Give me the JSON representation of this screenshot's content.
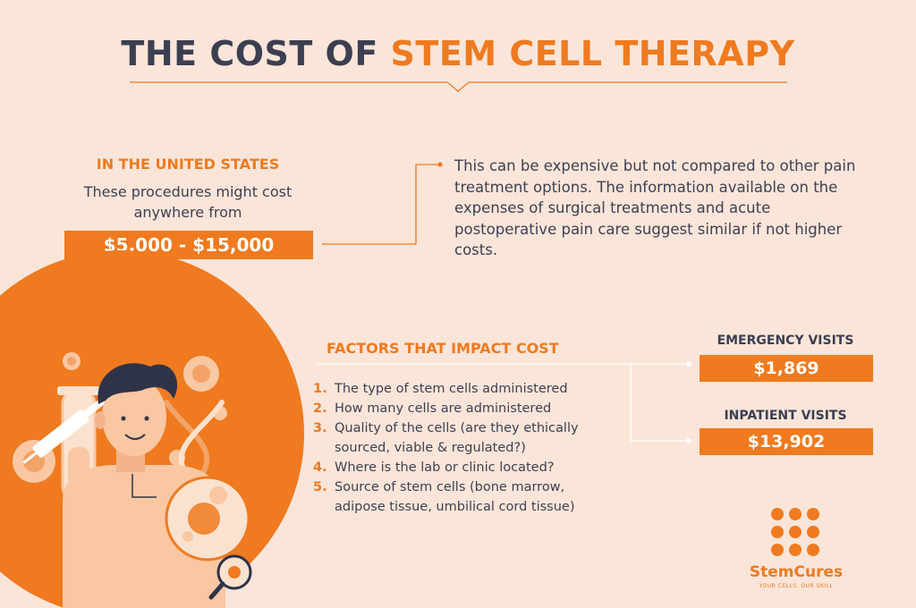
{
  "title": {
    "part1": "THE COST OF ",
    "part2": "STEM CELL THERAPY"
  },
  "united_states": {
    "heading": "IN THE UNITED STATES",
    "description_line1": "These procedures might cost",
    "description_line2": "anywhere from",
    "price_range": "$5,000 - $15,000"
  },
  "explanation": "This can be expensive but not compared to other pain treatment options. The information available on the expenses of surgical treatments and acute postoperative pain care suggest similar if not higher costs.",
  "factors": {
    "heading": "FACTORS THAT IMPACT COST",
    "items": [
      {
        "num": "1.",
        "lines": [
          "The type of stem cells administered"
        ]
      },
      {
        "num": "2.",
        "lines": [
          "How many cells are administered"
        ]
      },
      {
        "num": "3.",
        "lines": [
          "Quality of the cells (are they ethically",
          "sourced, viable & regulated?)"
        ]
      },
      {
        "num": "4.",
        "lines": [
          "Where is the lab or clinic located?"
        ]
      },
      {
        "num": "5.",
        "lines": [
          "Source of stem cells (bone marrow,",
          "adipose tissue, umbilical cord tissue)"
        ]
      }
    ]
  },
  "visits": {
    "emergency": {
      "label": "EMERGENCY VISITS",
      "value": "$1,869"
    },
    "inpatient": {
      "label": "INPATIENT VISITS",
      "value": "$13,902"
    }
  },
  "logo": {
    "name": "StemCures",
    "tagline": "YOUR CELLS. OUR SKILL"
  },
  "colors": {
    "accent": "#ef7a1f",
    "dark": "#3b3f51",
    "background": "#fbe5d9"
  }
}
